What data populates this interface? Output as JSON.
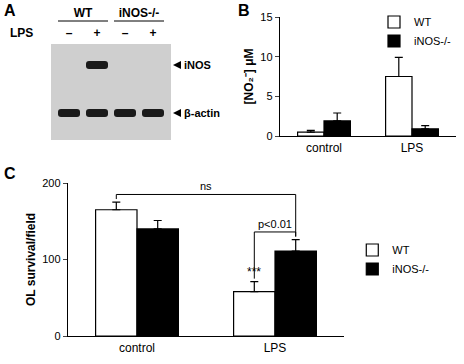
{
  "blot": {
    "panel_label": "A",
    "groups": [
      {
        "label": "WT",
        "lanes": 2
      },
      {
        "label": "iNOS-/-",
        "lanes": 2
      }
    ],
    "treatment": {
      "label": "LPS",
      "lanes": [
        "–",
        "+",
        "–",
        "+"
      ]
    },
    "bands": [
      {
        "label": "iNOS",
        "present": [
          false,
          true,
          false,
          false
        ]
      },
      {
        "label": "β-actin",
        "present": [
          true,
          true,
          true,
          true
        ]
      }
    ]
  },
  "chart_data": [
    {
      "panel_label": "B",
      "type": "bar",
      "categories": [
        "control",
        "LPS"
      ],
      "series": [
        {
          "name": "WT",
          "color": "#ffffff",
          "values": [
            0.5,
            7.5
          ],
          "errors": [
            0.2,
            2.4
          ]
        },
        {
          "name": "iNOS-/-",
          "color": "#000000",
          "values": [
            1.9,
            0.9
          ],
          "errors": [
            1.0,
            0.4
          ]
        }
      ],
      "y_label": "[NO₂⁻] μM",
      "ylim": [
        0,
        15
      ],
      "yticks": [
        0,
        5,
        10,
        15
      ],
      "legend": "upper right"
    },
    {
      "panel_label": "C",
      "type": "bar",
      "categories": [
        "control",
        "LPS"
      ],
      "series": [
        {
          "name": "WT",
          "color": "#ffffff",
          "values": [
            165,
            58
          ],
          "errors": [
            10,
            13
          ]
        },
        {
          "name": "iNOS-/-",
          "color": "#000000",
          "values": [
            140,
            111
          ],
          "errors": [
            11,
            15
          ]
        }
      ],
      "y_label": "OL survival/field",
      "ylim": [
        0,
        200
      ],
      "yticks": [
        0,
        100,
        200
      ],
      "legend": "right",
      "comparisons": [
        {
          "label": "p<0.01",
          "between": [
            [
              "LPS",
              "WT"
            ],
            [
              "LPS",
              "iNOS-/-"
            ]
          ]
        },
        {
          "label": "ns",
          "between": [
            [
              "control",
              "WT"
            ],
            [
              "LPS",
              "iNOS-/-"
            ]
          ]
        }
      ],
      "significance": [
        {
          "category": "LPS",
          "series": "WT",
          "label": "***"
        }
      ]
    }
  ]
}
